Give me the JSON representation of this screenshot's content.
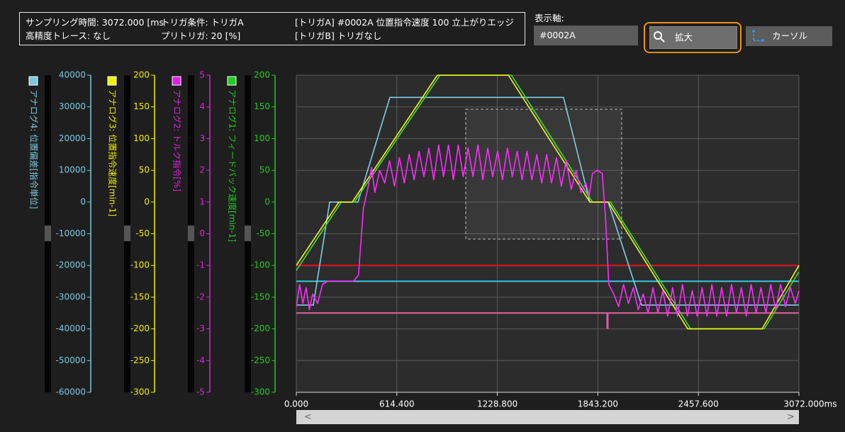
{
  "header": {
    "sampling": "サンプリング時間: 3072.000 [ms",
    "trigger_condition": "トリガ条件: トリガA",
    "trigger_a": "[トリガA] #0002A 位置指令速度 100 立上がりエッジ",
    "high_precision": "高精度トレース: なし",
    "pretrigger": "プリトリガ: 20 [%]",
    "trigger_b": "[トリガB] トリガなし"
  },
  "display_axis": {
    "label": "表示軸:",
    "value": "#0002A"
  },
  "buttons": {
    "zoom": "拡大",
    "cursor": "カーソル"
  },
  "chart_data": {
    "type": "line",
    "axes": [
      {
        "label": "アナログ4: 位置偏差[指令単位]",
        "color": "#7ec8e3",
        "ylim": [
          -60000,
          40000
        ],
        "yticks": [
          40000,
          30000,
          20000,
          10000,
          0,
          -10000,
          -20000,
          -30000,
          -40000,
          -50000,
          -60000
        ]
      },
      {
        "label": "アナログ3: 位置指令速度[min-1]",
        "color": "#f0f000",
        "ylim": [
          -300,
          200
        ],
        "yticks": [
          200,
          150,
          100,
          50,
          0,
          -50,
          -100,
          -150,
          -200,
          -250,
          -300
        ]
      },
      {
        "label": "アナログ2: トルク指令[%]",
        "color": "#e020e0",
        "ylim": [
          -5,
          5
        ],
        "yticks": [
          5,
          4,
          3,
          2,
          1,
          0,
          -1,
          -2,
          -3,
          -4,
          -5
        ]
      },
      {
        "label": "アナログ1: フィードバック速度[min-1]",
        "color": "#22cc22",
        "ylim": [
          -300,
          200
        ],
        "yticks": [
          200,
          150,
          100,
          50,
          0,
          -50,
          -100,
          -150,
          -200,
          -250,
          -300
        ]
      }
    ],
    "xlim": [
      0,
      3072
    ],
    "xticks": [
      {
        "value": 0,
        "label": "0.000"
      },
      {
        "value": 614.4,
        "label": "614.400"
      },
      {
        "value": 1228.8,
        "label": "1228.800"
      },
      {
        "value": 1843.2,
        "label": "1843.200"
      },
      {
        "value": 2457.6,
        "label": "2457.600"
      },
      {
        "value": 3072,
        "label": "3072.000ms"
      }
    ],
    "grid": true,
    "reference_lines": [
      {
        "axis": 3,
        "color": "#e8101a",
        "value": -100
      },
      {
        "axis": 3,
        "color": "#36c8e8",
        "value": -125
      },
      {
        "axis": 3,
        "color": "#e060a0",
        "value": -175
      }
    ],
    "trigger_marker": {
      "axis": 3,
      "color": "#e060a0",
      "x": 1902,
      "values": [
        -175,
        -200
      ]
    },
    "series": [
      {
        "axis": 0,
        "color": "#80cce8",
        "x": [
          0,
          104,
          204,
          377,
          572,
          1633,
          1794,
          1906,
          2110,
          3072
        ],
        "values": [
          -32500,
          -32500,
          0,
          0,
          33000,
          33000,
          0,
          0,
          -32500,
          -32500
        ]
      },
      {
        "axis": 3,
        "color": "#3ddc3d",
        "x": [
          0,
          275,
          355,
          878,
          1315,
          1810,
          1920,
          2410,
          2860,
          3072
        ],
        "values": [
          -108,
          0,
          0,
          200,
          200,
          0,
          0,
          -200,
          -200,
          -110
        ]
      },
      {
        "axis": 1,
        "color": "#f5f51a",
        "x": [
          0,
          260,
          342,
          862,
          1296,
          1794,
          1906,
          2392,
          2847,
          3072
        ],
        "values": [
          -100,
          0,
          0,
          200,
          200,
          0,
          0,
          -200,
          -200,
          -100
        ]
      },
      {
        "axis": 2,
        "color": "#ff2bff",
        "x": [
          0,
          20,
          40,
          60,
          80,
          100,
          130,
          160,
          190,
          230,
          270,
          310,
          350,
          380,
          410,
          440,
          460,
          480,
          510,
          540,
          570,
          600,
          630,
          660,
          690,
          720,
          750,
          780,
          810,
          840,
          870,
          900,
          930,
          960,
          990,
          1020,
          1050,
          1080,
          1110,
          1140,
          1170,
          1200,
          1230,
          1260,
          1290,
          1320,
          1350,
          1380,
          1410,
          1440,
          1470,
          1500,
          1530,
          1560,
          1590,
          1620,
          1650,
          1680,
          1710,
          1740,
          1770,
          1790,
          1810,
          1840,
          1870,
          1890,
          1910,
          1940,
          1970,
          2000,
          2030,
          2060,
          2090,
          2120,
          2150,
          2180,
          2210,
          2240,
          2270,
          2300,
          2330,
          2360,
          2390,
          2420,
          2450,
          2480,
          2510,
          2540,
          2570,
          2600,
          2630,
          2660,
          2690,
          2720,
          2750,
          2780,
          2810,
          2840,
          2870,
          2900,
          2930,
          2960,
          2990,
          3020,
          3050,
          3072
        ],
        "values": [
          -2.3,
          -1.6,
          -2.2,
          -1.7,
          -2.4,
          -1.9,
          -2.2,
          -1.6,
          -1.5,
          -1.5,
          -1.5,
          -1.5,
          -1.5,
          -1.3,
          0.8,
          1.5,
          2.1,
          1.3,
          2.0,
          1.6,
          2.3,
          1.5,
          2.4,
          1.6,
          2.5,
          1.7,
          2.6,
          1.8,
          2.7,
          1.7,
          2.8,
          1.8,
          2.8,
          1.7,
          2.8,
          1.8,
          2.7,
          1.8,
          2.8,
          1.7,
          2.7,
          1.8,
          2.6,
          1.7,
          2.7,
          1.8,
          2.6,
          1.7,
          2.6,
          1.7,
          2.5,
          1.6,
          2.5,
          1.6,
          2.4,
          1.5,
          2.3,
          1.4,
          2.0,
          1.3,
          1.6,
          1.2,
          1.9,
          2.0,
          1.9,
          0.5,
          -1.6,
          -1.9,
          -2.3,
          -1.6,
          -2.2,
          -1.7,
          -2.4,
          -1.9,
          -2.5,
          -1.7,
          -2.5,
          -1.8,
          -2.6,
          -1.7,
          -2.6,
          -1.6,
          -2.6,
          -1.8,
          -2.6,
          -1.7,
          -2.6,
          -1.6,
          -2.6,
          -1.7,
          -2.6,
          -1.6,
          -2.5,
          -1.7,
          -2.6,
          -1.6,
          -2.5,
          -1.7,
          -2.5,
          -1.6,
          -2.4,
          -1.6,
          -2.3,
          -1.7,
          -2.2,
          -1.8
        ]
      }
    ]
  }
}
